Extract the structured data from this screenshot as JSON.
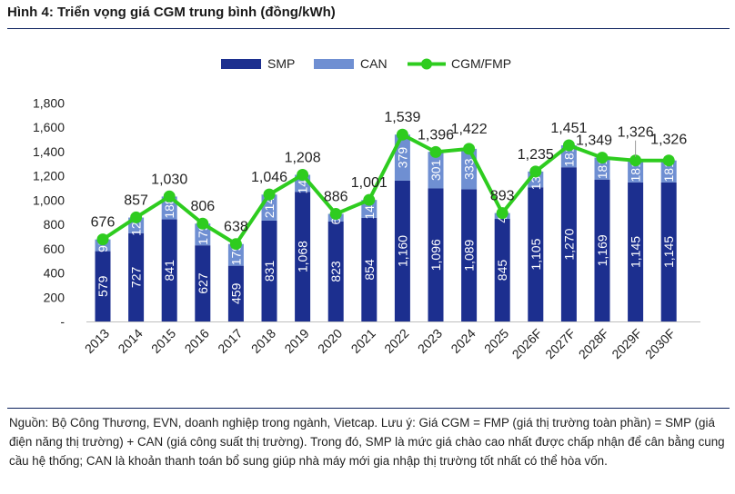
{
  "title": "Hình 4: Triển vọng giá CGM trung bình (đồng/kWh)",
  "note": "Nguồn: Bộ Công Thương, EVN, doanh nghiệp trong ngành, Vietcap. Lưu ý: Giá CGM = FMP (giá thị trường toàn phần) = SMP (giá điện năng thị trường) + CAN (giá công suất thị trường). Trong đó, SMP là mức giá chào cao nhất được chấp nhận để cân bằng cung cầu hệ thống; CAN là khoản thanh toán bổ sung giúp nhà máy mới gia nhập thị trường tốt nhất có thể hòa vốn.",
  "colors": {
    "smp": "#1c2f8f",
    "can": "#6f8fd2",
    "line": "#2ecc1f",
    "marker_edge": "#2ecc1f"
  },
  "chart_data": {
    "type": "bar",
    "stacked": true,
    "categories": [
      "2013",
      "2014",
      "2015",
      "2016",
      "2017",
      "2018",
      "2019",
      "2020",
      "2021",
      "2022",
      "2023",
      "2024",
      "2025",
      "2026F",
      "2027F",
      "2028F",
      "2029F",
      "2030F"
    ],
    "series": [
      {
        "name": "SMP",
        "type": "bar",
        "values": [
          579,
          727,
          841,
          627,
          459,
          831,
          1068,
          823,
          854,
          1160,
          1096,
          1089,
          845,
          1105,
          1270,
          1169,
          1145,
          1145
        ]
      },
      {
        "name": "CAN",
        "type": "bar",
        "values": [
          97,
          129,
          188,
          179,
          179,
          214,
          140,
          63,
          147,
          379,
          301,
          333,
          48,
          130,
          181,
          181,
          181,
          181
        ]
      },
      {
        "name": "CGM/FMP",
        "type": "line",
        "values": [
          676,
          857,
          1030,
          806,
          638,
          1046,
          1208,
          886,
          1001,
          1539,
          1396,
          1422,
          893,
          1235,
          1451,
          1349,
          1326,
          1326
        ]
      }
    ],
    "smp_labels": [
      "579",
      "727",
      "841",
      "627",
      "459",
      "831",
      "1,068",
      "823",
      "854",
      "1,160",
      "1,096",
      "1,089",
      "845",
      "1,105",
      "1,270",
      "1,169",
      "1,145",
      "1,145"
    ],
    "can_labels": [
      "97",
      "129",
      "188",
      "179",
      "179",
      "214",
      "140",
      "63",
      "147",
      "379",
      "301",
      "333",
      "48",
      "130",
      "181",
      "181",
      "181",
      "181"
    ],
    "total_labels": [
      "676",
      "857",
      "1,030",
      "806",
      "638",
      "1,046",
      "1,208",
      "886",
      "1,001",
      "1,539",
      "1,396",
      "1,422",
      "893",
      "1,235",
      "1,451",
      "1,349",
      "1,326",
      "1,326"
    ],
    "yticks": [
      0,
      200,
      400,
      600,
      800,
      1000,
      1200,
      1400,
      1600,
      1800
    ],
    "ytick_labels": [
      "-",
      "200",
      "400",
      "600",
      "800",
      "1,000",
      "1,200",
      "1,400",
      "1,600",
      "1,800"
    ],
    "ylim": [
      0,
      1800
    ],
    "legend_position": "top-center",
    "grid": false
  }
}
